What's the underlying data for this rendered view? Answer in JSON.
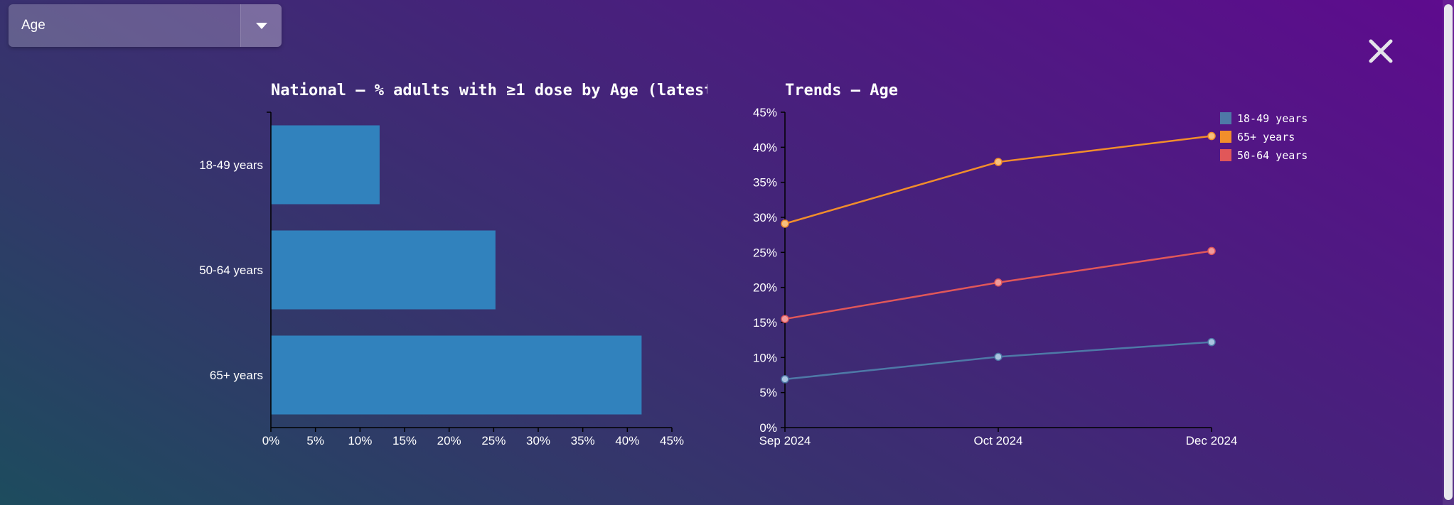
{
  "dropdown": {
    "selected": "Age"
  },
  "close": {
    "icon": "close-icon",
    "glyph": "✕"
  },
  "colors": {
    "bar": "#3182bd",
    "axis": "#000000",
    "series": {
      "18-49 years": "#4e79a7",
      "65+ years": "#f28e2b",
      "50-64 years": "#e15759"
    }
  },
  "chart_data": [
    {
      "type": "bar",
      "orientation": "horizontal",
      "title": "National – % adults with ≥1 dose by Age (latest",
      "categories": [
        "18-49 years",
        "50-64 years",
        "65+ years"
      ],
      "values": [
        12.2,
        25.2,
        41.6
      ],
      "xlim": [
        0,
        45
      ],
      "xticks": [
        "0%",
        "5%",
        "10%",
        "15%",
        "20%",
        "25%",
        "30%",
        "35%",
        "40%",
        "45%"
      ],
      "grid": false
    },
    {
      "type": "line",
      "title": "Trends – Age",
      "x": [
        "Sep 2024",
        "Oct 2024",
        "Dec 2024"
      ],
      "ylim": [
        0,
        45
      ],
      "yticks": [
        "0%",
        "5%",
        "10%",
        "15%",
        "20%",
        "25%",
        "30%",
        "35%",
        "40%",
        "45%"
      ],
      "legend_position": "top-right",
      "series": [
        {
          "name": "18-49 years",
          "values": [
            6.9,
            10.1,
            12.2
          ]
        },
        {
          "name": "65+ years",
          "values": [
            29.1,
            37.9,
            41.6
          ]
        },
        {
          "name": "50-64 years",
          "values": [
            15.5,
            20.7,
            25.2
          ]
        }
      ],
      "grid": false
    }
  ]
}
